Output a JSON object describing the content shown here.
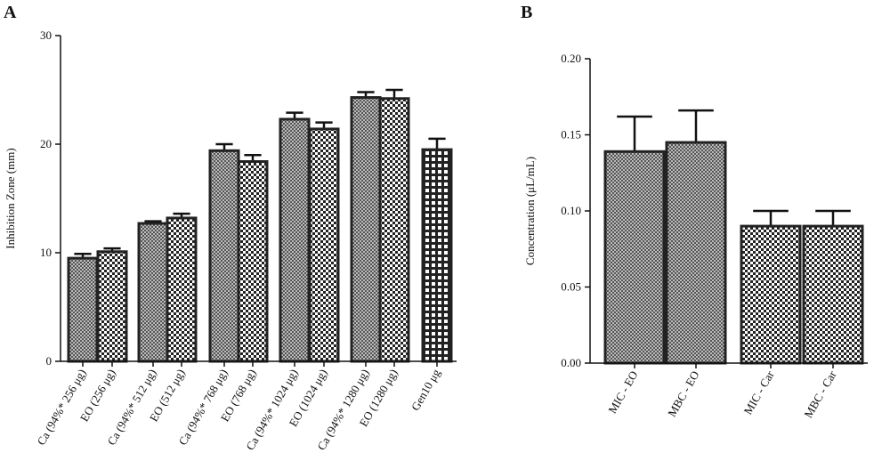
{
  "chart_data": [
    {
      "type": "bar",
      "panel_label": "A",
      "y_label": "Inhibition Zone (mm)",
      "categories": [
        "Ca (94%* 256 μg)",
        "EO (256 μg)",
        "Ca (94%* 512 μg)",
        "EO (512 μg)",
        "Ca (94%* 768 μg)",
        "EO (768 μg)",
        "Ca (94%* 1024 μg)",
        "EO (1024 μg)",
        "Ca (94%* 1280 μg)",
        "EO (1280 μg)",
        "Gen10 μg"
      ],
      "values": [
        9.5,
        10.1,
        12.7,
        13.2,
        19.4,
        18.4,
        22.3,
        21.4,
        24.3,
        24.2,
        19.5
      ],
      "errors": [
        0.4,
        0.3,
        0.2,
        0.4,
        0.6,
        0.6,
        0.6,
        0.6,
        0.5,
        0.8,
        1.0
      ],
      "patterns": [
        "fine",
        "check",
        "fine",
        "check",
        "fine",
        "check",
        "fine",
        "check",
        "fine",
        "check",
        "grid"
      ],
      "ylim": [
        0,
        30
      ],
      "yticks": [
        0,
        10,
        20,
        30
      ]
    },
    {
      "type": "bar",
      "panel_label": "B",
      "y_label": "Concentration (μL/mL)",
      "categories": [
        "MIC - EO",
        "MBC - EO",
        "MIC - Car",
        "MBC - Car"
      ],
      "values": [
        0.139,
        0.145,
        0.09,
        0.09
      ],
      "errors": [
        0.023,
        0.021,
        0.01,
        0.01
      ],
      "patterns": [
        "fine",
        "fine",
        "check",
        "check"
      ],
      "ylim": [
        0,
        0.2
      ],
      "yticks": [
        {
          "value": 0,
          "label": "0.00"
        },
        0.05,
        {
          "value": 0.1,
          "label": "0.10"
        },
        0.15,
        {
          "value": 0.2,
          "label": "0.20"
        }
      ]
    }
  ]
}
